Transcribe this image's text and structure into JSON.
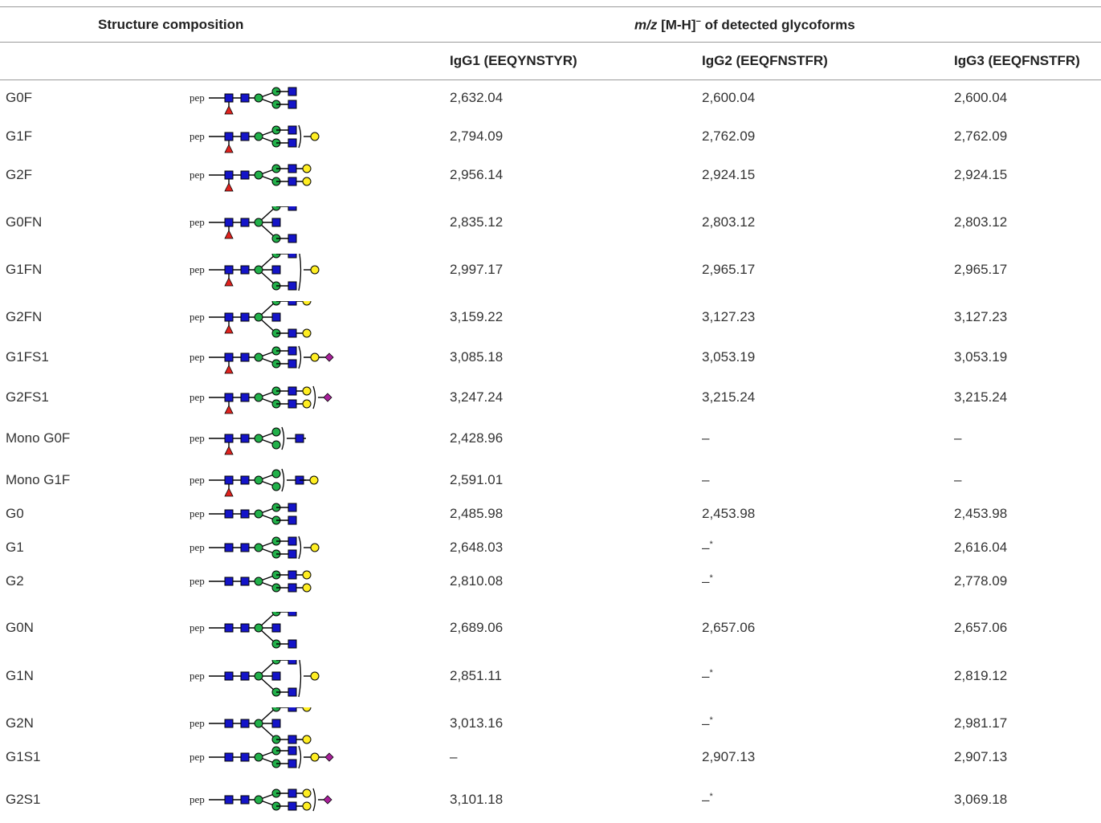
{
  "header": {
    "structure_composition": "Structure composition",
    "mz_prefix": "m/z",
    "mz_rest": " [M-H]",
    "mz_sup": "−",
    "mz_suffix": " of detected glycoforms",
    "igg1": "IgG1 (EEQYNSTYR)",
    "igg2": "IgG2 (EEQFNSTFR)",
    "igg3": "IgG3 (EEQFNSTFR)"
  },
  "pep_label": "pep",
  "colors": {
    "glcnac": "#1414c8",
    "mannose": "#22b04a",
    "galactose": "#ffee22",
    "fucose": "#e0221e",
    "sialic": "#a8209a"
  },
  "rows": [
    {
      "name": "G0F",
      "igg1": "2,632.04",
      "igg2": "2,600.04",
      "igg3": "2,600.04",
      "glycan": {
        "fuc": true,
        "bisect": false,
        "gal": 0,
        "sia": 0,
        "mono": false
      }
    },
    {
      "name": "G1F",
      "igg1": "2,794.09",
      "igg2": "2,762.09",
      "igg3": "2,762.09",
      "glycan": {
        "fuc": true,
        "bisect": false,
        "gal": 1,
        "sia": 0,
        "mono": false
      }
    },
    {
      "name": "G2F",
      "igg1": "2,956.14",
      "igg2": "2,924.15",
      "igg3": "2,924.15",
      "glycan": {
        "fuc": true,
        "bisect": false,
        "gal": 2,
        "sia": 0,
        "mono": false
      }
    },
    {
      "name": "G0FN",
      "igg1": "2,835.12",
      "igg2": "2,803.12",
      "igg3": "2,803.12",
      "glycan": {
        "fuc": true,
        "bisect": true,
        "gal": 0,
        "sia": 0,
        "mono": false
      }
    },
    {
      "name": "G1FN",
      "igg1": "2,997.17",
      "igg2": "2,965.17",
      "igg3": "2,965.17",
      "glycan": {
        "fuc": true,
        "bisect": true,
        "gal": 1,
        "sia": 0,
        "mono": false
      }
    },
    {
      "name": "G2FN",
      "igg1": "3,159.22",
      "igg2": "3,127.23",
      "igg3": "3,127.23",
      "glycan": {
        "fuc": true,
        "bisect": true,
        "gal": 2,
        "sia": 0,
        "mono": false
      }
    },
    {
      "name": "G1FS1",
      "igg1": "3,085.18",
      "igg2": "3,053.19",
      "igg3": "3,053.19",
      "glycan": {
        "fuc": true,
        "bisect": false,
        "gal": 1,
        "sia": 1,
        "mono": false
      }
    },
    {
      "name": "G2FS1",
      "igg1": "3,247.24",
      "igg2": "3,215.24",
      "igg3": "3,215.24",
      "glycan": {
        "fuc": true,
        "bisect": false,
        "gal": 2,
        "sia": 1,
        "mono": false
      }
    },
    {
      "name": "Mono G0F",
      "igg1": "2,428.96",
      "igg2": "–",
      "igg3": "–",
      "glycan": {
        "fuc": true,
        "bisect": false,
        "gal": 0,
        "sia": 0,
        "mono": true
      }
    },
    {
      "name": "Mono G1F",
      "igg1": "2,591.01",
      "igg2": "–",
      "igg3": "–",
      "glycan": {
        "fuc": true,
        "bisect": false,
        "gal": 1,
        "sia": 0,
        "mono": true
      }
    },
    {
      "name": "G0",
      "igg1": "2,485.98",
      "igg2": "2,453.98",
      "igg3": "2,453.98",
      "glycan": {
        "fuc": false,
        "bisect": false,
        "gal": 0,
        "sia": 0,
        "mono": false
      }
    },
    {
      "name": "G1",
      "igg1": "2,648.03",
      "igg2": "–*",
      "igg3": "2,616.04",
      "glycan": {
        "fuc": false,
        "bisect": false,
        "gal": 1,
        "sia": 0,
        "mono": false
      }
    },
    {
      "name": "G2",
      "igg1": "2,810.08",
      "igg2": "–*",
      "igg3": "2,778.09",
      "glycan": {
        "fuc": false,
        "bisect": false,
        "gal": 2,
        "sia": 0,
        "mono": false
      }
    },
    {
      "name": "G0N",
      "igg1": "2,689.06",
      "igg2": "2,657.06",
      "igg3": "2,657.06",
      "glycan": {
        "fuc": false,
        "bisect": true,
        "gal": 0,
        "sia": 0,
        "mono": false
      }
    },
    {
      "name": "G1N",
      "igg1": "2,851.11",
      "igg2": "–*",
      "igg3": "2,819.12",
      "glycan": {
        "fuc": false,
        "bisect": true,
        "gal": 1,
        "sia": 0,
        "mono": false
      }
    },
    {
      "name": "G2N",
      "igg1": "3,013.16",
      "igg2": "–*",
      "igg3": "2,981.17",
      "glycan": {
        "fuc": false,
        "bisect": true,
        "gal": 2,
        "sia": 0,
        "mono": false
      }
    },
    {
      "name": "G1S1",
      "igg1": "–",
      "igg2": "2,907.13",
      "igg3": "2,907.13",
      "glycan": {
        "fuc": false,
        "bisect": false,
        "gal": 1,
        "sia": 1,
        "mono": false
      }
    },
    {
      "name": "G2S1",
      "igg1": "3,101.18",
      "igg2": "–*",
      "igg3": "3,069.18",
      "glycan": {
        "fuc": false,
        "bisect": false,
        "gal": 2,
        "sia": 1,
        "mono": false
      }
    }
  ]
}
